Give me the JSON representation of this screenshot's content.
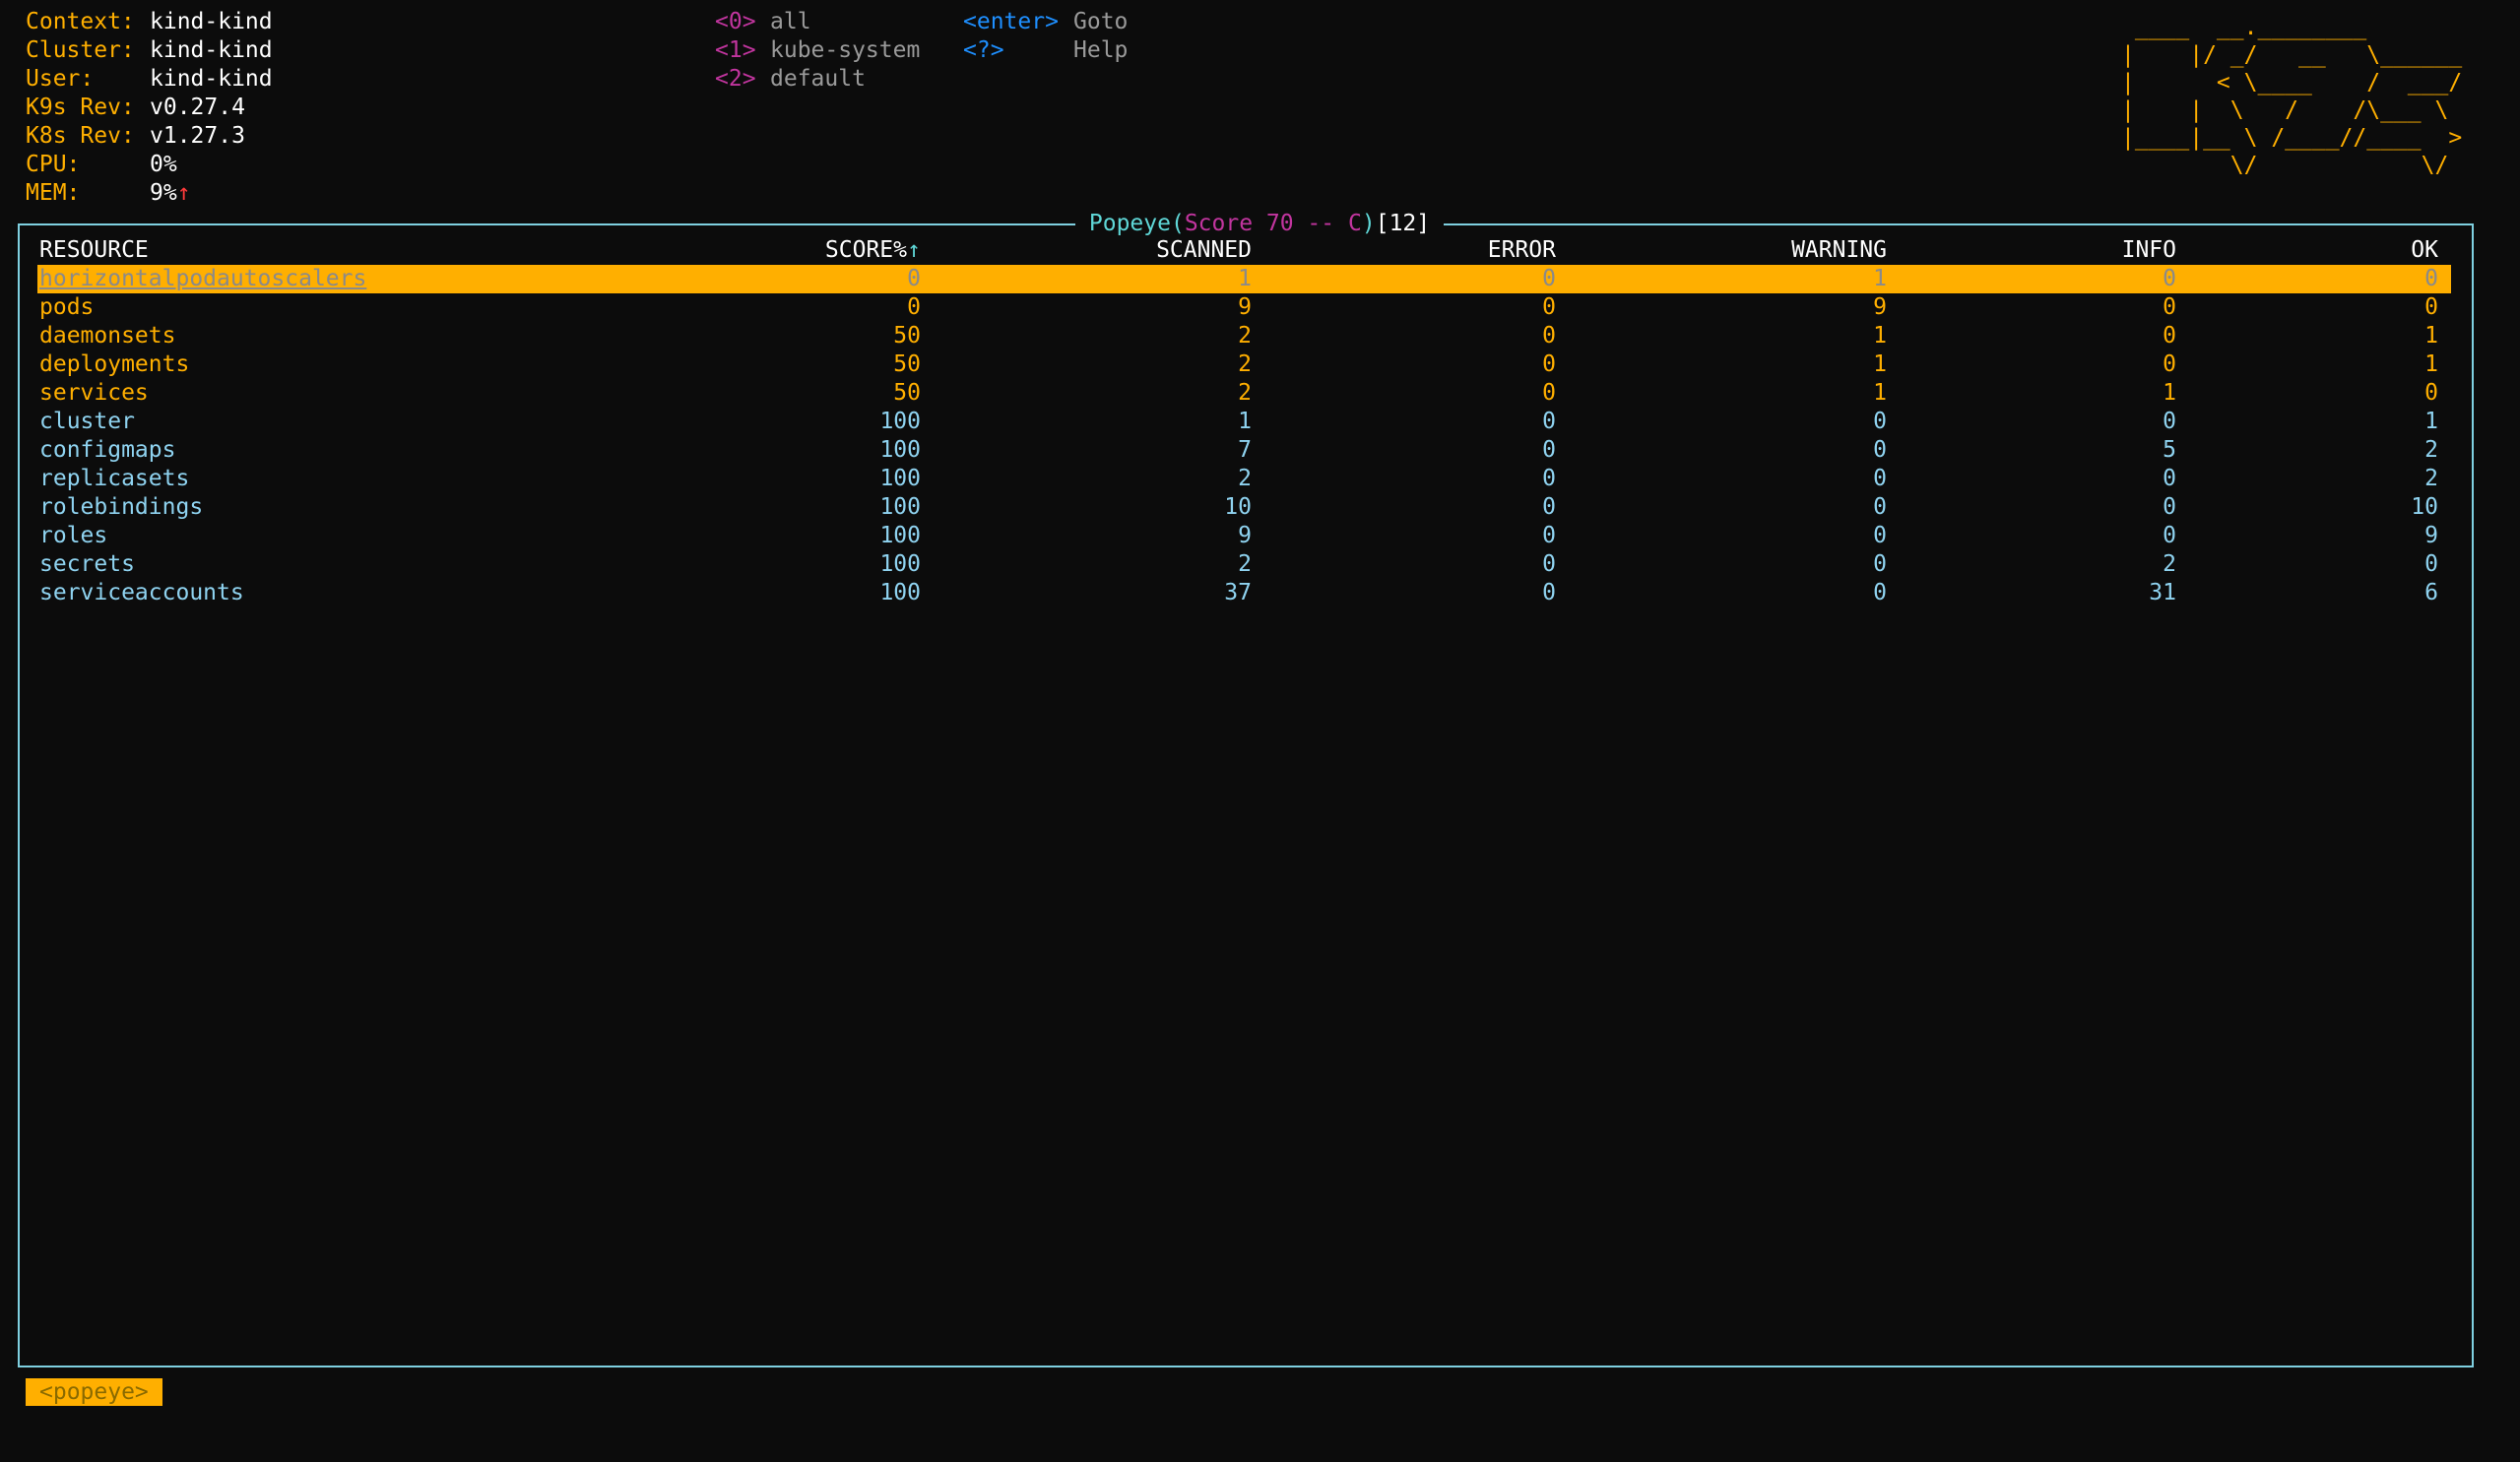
{
  "header": {
    "info": [
      {
        "label": "Context:",
        "value": "kind-kind"
      },
      {
        "label": "Cluster:",
        "value": "kind-kind"
      },
      {
        "label": "User:",
        "value": "kind-kind"
      },
      {
        "label": "K9s Rev:",
        "value": "v0.27.4"
      },
      {
        "label": "K8s Rev:",
        "value": "v1.27.3"
      },
      {
        "label": "CPU:",
        "value": "0%"
      },
      {
        "label": "MEM:",
        "value": "9%",
        "trend": "↑"
      }
    ],
    "namespaces": [
      {
        "key": "<0>",
        "name": "all"
      },
      {
        "key": "<1>",
        "name": "kube-system"
      },
      {
        "key": "<2>",
        "name": "default"
      }
    ],
    "shortcuts": [
      {
        "key": "<enter>",
        "name": "Goto"
      },
      {
        "key": "<?>",
        "name": "Help"
      }
    ],
    "logo": [
      " ____  __.________       ",
      "|    |/ _/   __   \\______",
      "|      < \\____    /  ___/",
      "|    |  \\   /    /\\___ \\ ",
      "|____|__ \\ /____//____  >",
      "        \\/            \\/ "
    ]
  },
  "table": {
    "title": "Popeye(",
    "score": "Score 70 -- C",
    "close": ")",
    "count": "[12]",
    "columns": [
      "RESOURCE",
      "SCORE%",
      "SCANNED",
      "ERROR",
      "WARNING",
      "INFO",
      "OK"
    ],
    "sort_indicator": "↑",
    "rows": [
      [
        "horizontalpodautoscalers",
        "0",
        "1",
        "0",
        "1",
        "0",
        "0"
      ],
      [
        "pods",
        "0",
        "9",
        "0",
        "9",
        "0",
        "0"
      ],
      [
        "daemonsets",
        "50",
        "2",
        "0",
        "1",
        "0",
        "1"
      ],
      [
        "deployments",
        "50",
        "2",
        "0",
        "1",
        "0",
        "1"
      ],
      [
        "services",
        "50",
        "2",
        "0",
        "1",
        "1",
        "0"
      ],
      [
        "cluster",
        "100",
        "1",
        "0",
        "0",
        "0",
        "1"
      ],
      [
        "configmaps",
        "100",
        "7",
        "0",
        "0",
        "5",
        "2"
      ],
      [
        "replicasets",
        "100",
        "2",
        "0",
        "0",
        "0",
        "2"
      ],
      [
        "rolebindings",
        "100",
        "10",
        "0",
        "0",
        "0",
        "10"
      ],
      [
        "roles",
        "100",
        "9",
        "0",
        "0",
        "0",
        "9"
      ],
      [
        "secrets",
        "100",
        "2",
        "0",
        "0",
        "2",
        "0"
      ],
      [
        "serviceaccounts",
        "100",
        "37",
        "0",
        "0",
        "31",
        "6"
      ]
    ],
    "selected": 0
  },
  "footer": {
    "crumb": "<popeye>"
  }
}
